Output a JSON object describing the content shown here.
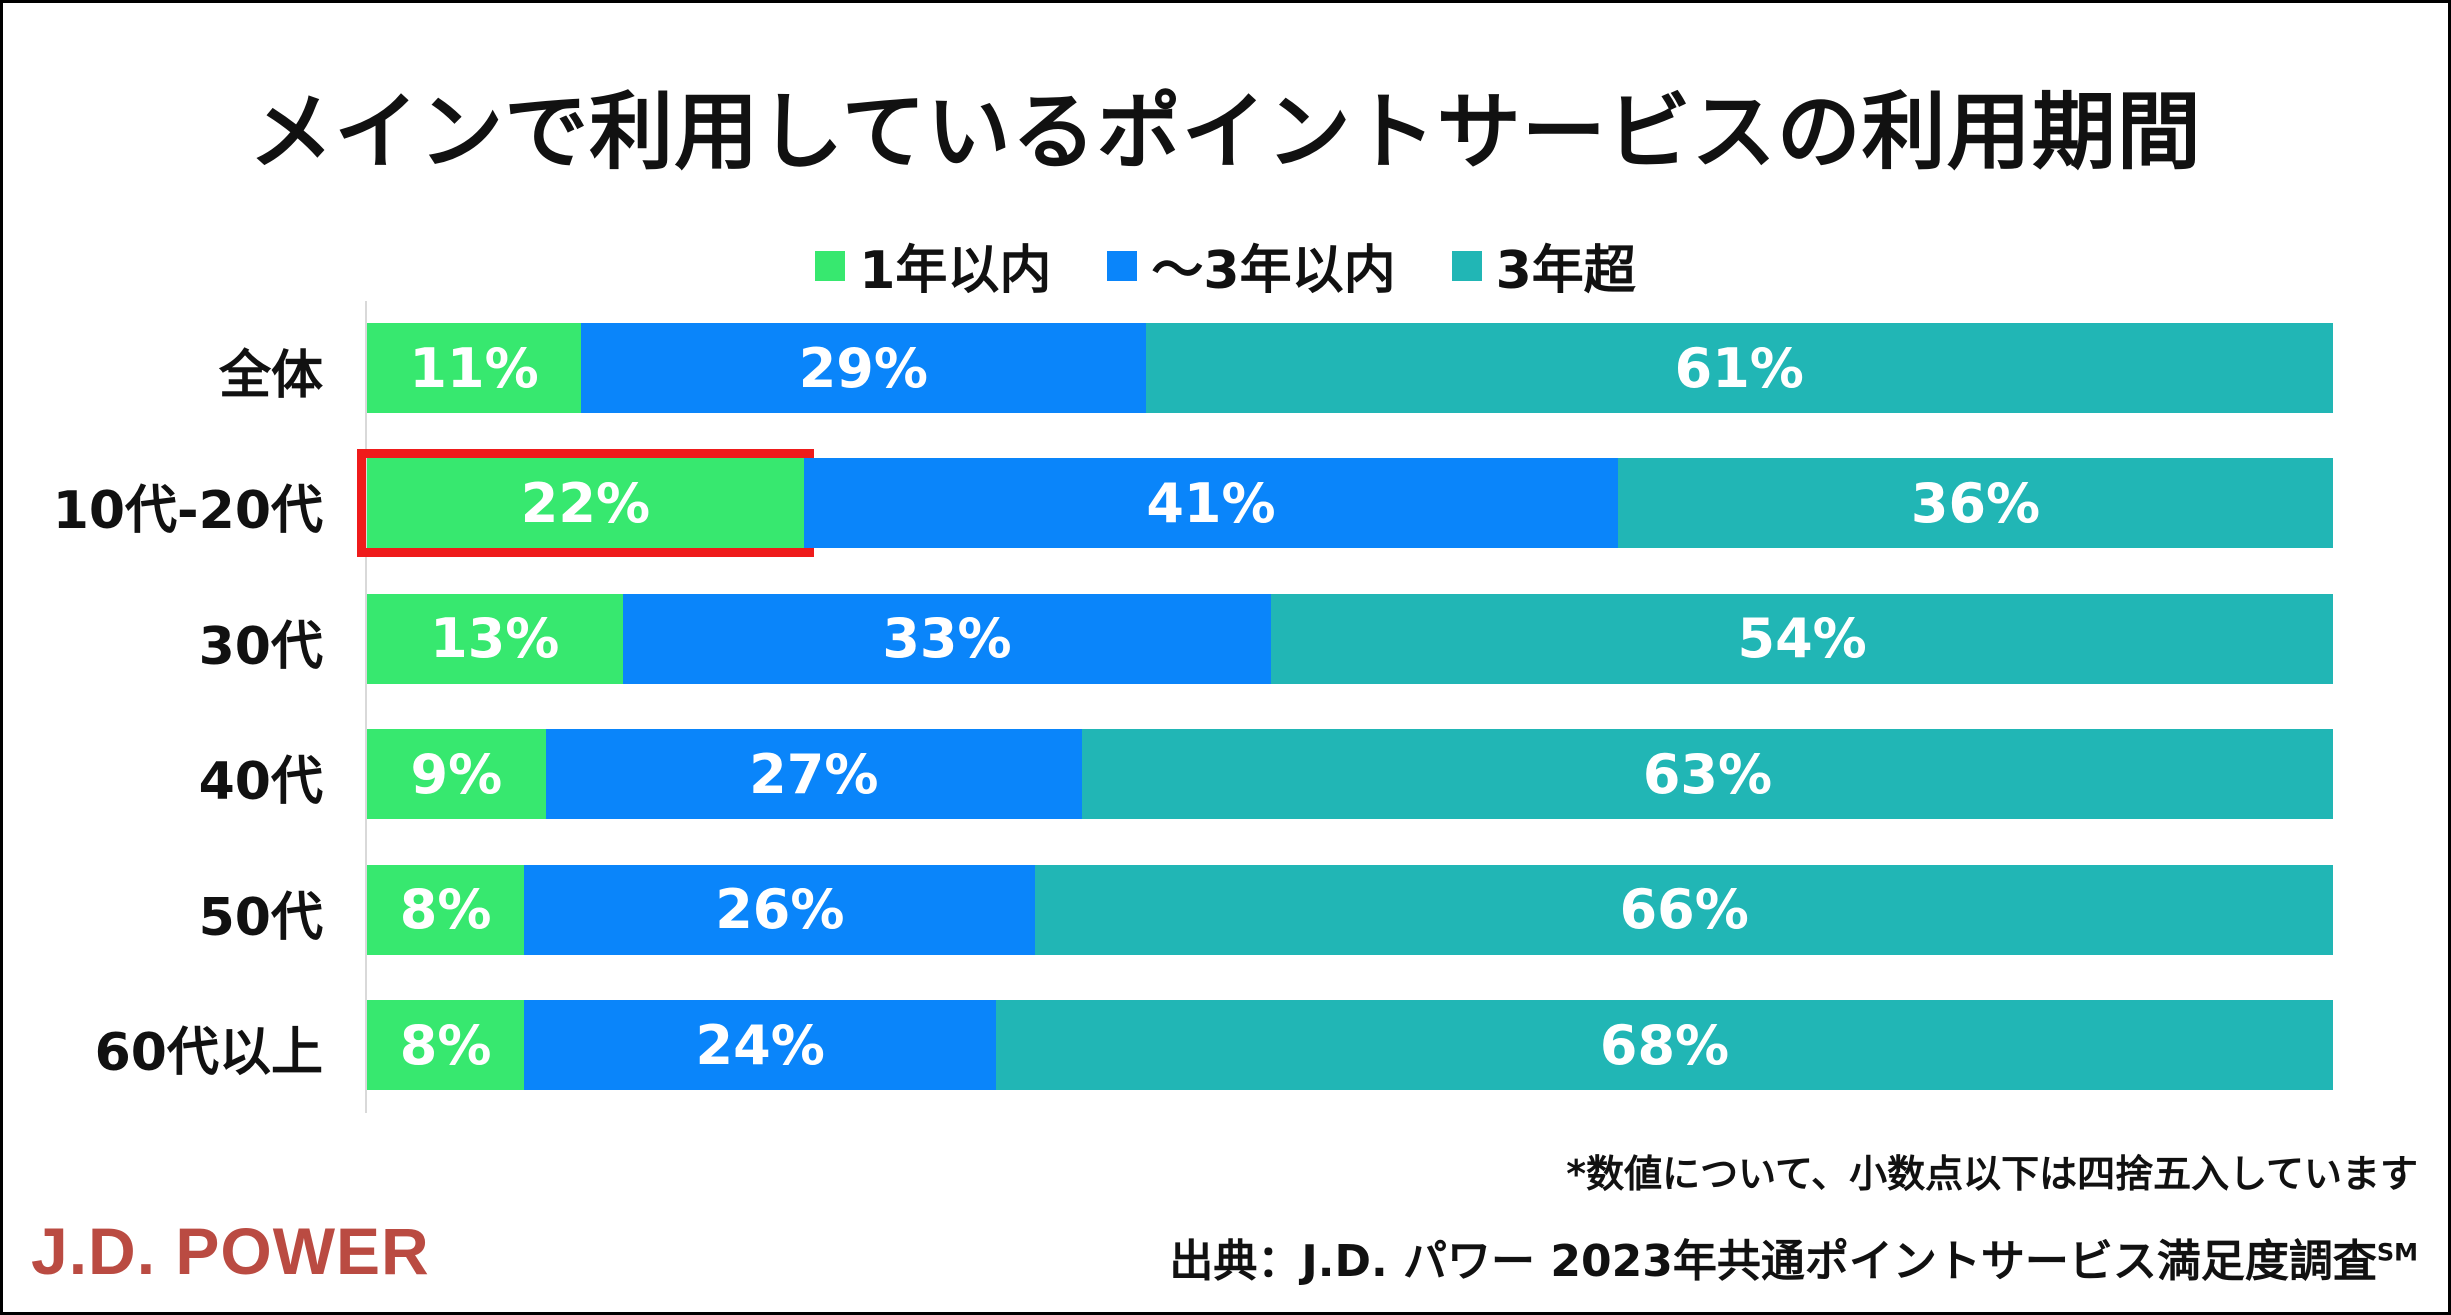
{
  "colors": {
    "series_1": "#37e86f",
    "series_2": "#0a85fa",
    "series_3": "#21b6b5",
    "highlight": "#ef1b1b",
    "logo": "#ba4b42"
  },
  "chart_data": {
    "type": "bar",
    "orientation": "horizontal",
    "stacked": true,
    "title": "メインで利用しているポイントサービスの利用期間",
    "categories": [
      "全体",
      "10代-20代",
      "30代",
      "40代",
      "50代",
      "60代以上"
    ],
    "series": [
      {
        "name": "1年以内",
        "values": [
          11,
          22,
          13,
          9,
          8,
          8
        ],
        "labels": [
          "11%",
          "22%",
          "13%",
          "9%",
          "8%",
          "8%"
        ]
      },
      {
        "name": "～3年以内",
        "values": [
          29,
          41,
          33,
          27,
          26,
          24
        ],
        "labels": [
          "29%",
          "41%",
          "33%",
          "27%",
          "26%",
          "24%"
        ]
      },
      {
        "name": "3年超",
        "values": [
          61,
          36,
          54,
          63,
          66,
          68
        ],
        "labels": [
          "61%",
          "36%",
          "54%",
          "63%",
          "66%",
          "68%"
        ]
      }
    ],
    "legend": "top",
    "highlight": {
      "category": "10代-20代",
      "series": "1年以内"
    }
  },
  "footnote": "*数値について、小数点以下は四捨五入しています",
  "source": {
    "text": "出典：J.D. パワー 2023年共通ポイントサービス満足度調査",
    "mark": "SM"
  },
  "logo": "J.D. POWER"
}
